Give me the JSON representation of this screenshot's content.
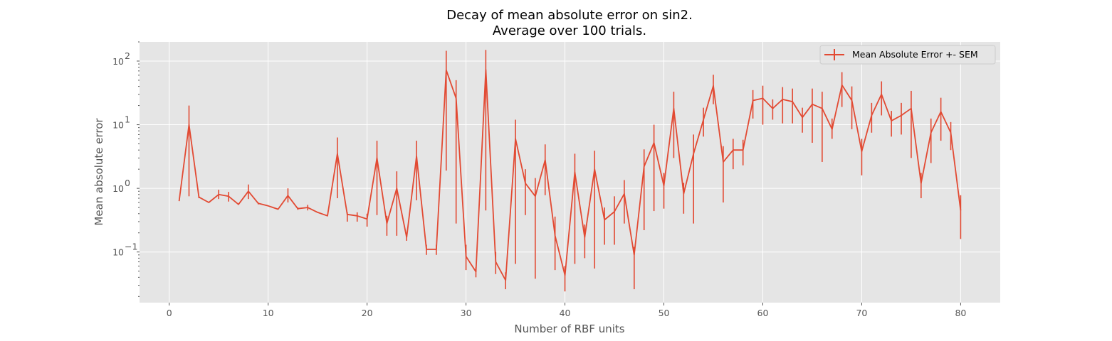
{
  "chart_data": {
    "type": "line",
    "title_line1": "Decay of mean absolute error on sin2.",
    "title_line2": "Average over 100 trials.",
    "xlabel": "Number of RBF units",
    "ylabel": "Mean absolute error",
    "xlim": [
      -3,
      84
    ],
    "ylim": [
      0.016,
      200
    ],
    "yscale": "log",
    "grid": true,
    "legend_placement": "top-right",
    "colors": {
      "series": "#E24A33",
      "plot_bg": "#E5E5E5",
      "grid": "#FFFFFF",
      "tick_label": "#555555"
    },
    "x_ticks": [
      0,
      10,
      20,
      30,
      40,
      50,
      60,
      70,
      80
    ],
    "x_tick_labels": [
      "0",
      "10",
      "20",
      "30",
      "40",
      "50",
      "60",
      "70",
      "80"
    ],
    "y_ticks": [
      {
        "value": 0.1,
        "base": "10",
        "exp": "−1"
      },
      {
        "value": 1,
        "base": "10",
        "exp": "0"
      },
      {
        "value": 10,
        "base": "10",
        "exp": "1"
      },
      {
        "value": 100,
        "base": "10",
        "exp": "2"
      }
    ],
    "series": [
      {
        "name": "Mean Absolute Error +- SEM",
        "x": [
          1,
          2,
          3,
          4,
          5,
          6,
          7,
          8,
          9,
          10,
          11,
          12,
          13,
          14,
          15,
          16,
          17,
          18,
          19,
          20,
          21,
          22,
          23,
          24,
          25,
          26,
          27,
          28,
          29,
          30,
          31,
          32,
          33,
          34,
          35,
          36,
          37,
          38,
          39,
          40,
          41,
          42,
          43,
          44,
          45,
          46,
          47,
          48,
          49,
          50,
          51,
          52,
          53,
          54,
          55,
          56,
          57,
          58,
          59,
          60,
          61,
          62,
          63,
          64,
          65,
          66,
          67,
          68,
          69,
          70,
          71,
          72,
          73,
          74,
          75,
          76,
          77,
          78,
          79,
          80
        ],
        "y": [
          0.63,
          10,
          0.73,
          0.6,
          0.8,
          0.75,
          0.56,
          0.9,
          0.58,
          0.53,
          0.47,
          0.77,
          0.48,
          0.5,
          0.42,
          0.37,
          3.5,
          0.39,
          0.37,
          0.33,
          3,
          0.28,
          1,
          0.17,
          3.2,
          0.11,
          0.11,
          72,
          26,
          0.085,
          0.049,
          73,
          0.07,
          0.036,
          6,
          1.2,
          0.75,
          2.8,
          0.18,
          0.043,
          1.8,
          0.17,
          2,
          0.32,
          0.43,
          0.82,
          0.09,
          2.2,
          5.2,
          1.1,
          18,
          0.82,
          3.5,
          12,
          41,
          2.6,
          4,
          4,
          24,
          26,
          18,
          25,
          23,
          13,
          21,
          18,
          8.5,
          42,
          24,
          3.8,
          14,
          30,
          11.5,
          14,
          18,
          1.2,
          7.5,
          16,
          7.5,
          0.45
        ],
        "y_lower": [
          0.63,
          0.75,
          0.7,
          0.6,
          0.68,
          0.62,
          0.56,
          0.68,
          0.56,
          0.53,
          0.47,
          0.6,
          0.46,
          0.45,
          0.42,
          0.37,
          0.7,
          0.3,
          0.3,
          0.25,
          0.38,
          0.18,
          0.18,
          0.15,
          0.65,
          0.09,
          0.09,
          1.9,
          0.28,
          0.052,
          0.04,
          0.45,
          0.045,
          0.026,
          0.065,
          0.38,
          0.038,
          0.78,
          0.052,
          0.024,
          0.065,
          0.08,
          0.055,
          0.13,
          0.13,
          0.28,
          0.026,
          0.22,
          0.44,
          0.48,
          3,
          0.4,
          0.28,
          6.5,
          21,
          0.6,
          2,
          2.3,
          12.5,
          10,
          12,
          10.5,
          10.5,
          7.5,
          5.2,
          2.6,
          6,
          19,
          8.5,
          1.6,
          7.5,
          14,
          6.5,
          7,
          3,
          0.7,
          2.5,
          5.6,
          4,
          0.16
        ],
        "y_upper": [
          0.63,
          20,
          0.76,
          0.6,
          0.95,
          0.88,
          0.56,
          1.15,
          0.6,
          0.53,
          0.47,
          1.0,
          0.5,
          0.55,
          0.42,
          0.37,
          6.3,
          0.42,
          0.42,
          0.4,
          5.6,
          0.37,
          1.85,
          0.2,
          5.6,
          0.13,
          0.13,
          145,
          50,
          0.13,
          0.058,
          150,
          0.1,
          0.048,
          12,
          2.0,
          1.45,
          4.9,
          0.36,
          0.06,
          3.5,
          0.27,
          3.9,
          0.5,
          0.75,
          1.35,
          0.12,
          4.1,
          10,
          1.75,
          33,
          1.22,
          7,
          18.5,
          61,
          4.6,
          6,
          5.8,
          35,
          41,
          25,
          39,
          37,
          18.5,
          37,
          33,
          12.5,
          67,
          40,
          6,
          22,
          48,
          16.5,
          22,
          34,
          1.75,
          12.5,
          26.5,
          11,
          0.78
        ]
      }
    ]
  }
}
